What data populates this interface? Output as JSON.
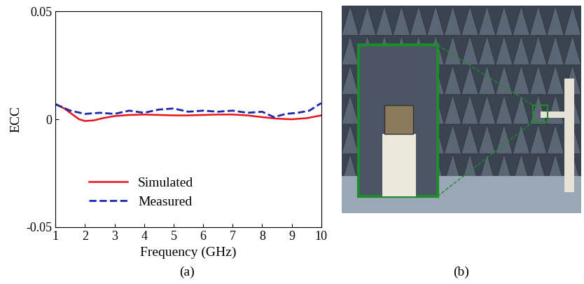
{
  "chart_data": {
    "type": "line",
    "caption": "(a)",
    "x_label": "Frequency (GHz)",
    "y_label": "ECC",
    "xlim": [
      1,
      10
    ],
    "xticks": [
      1,
      2,
      3,
      4,
      5,
      6,
      7,
      8,
      9,
      10
    ],
    "ylim": [
      -0.05,
      0.05
    ],
    "yticks": [
      -0.05,
      0,
      0.05
    ],
    "legend": "lower left",
    "series": [
      {
        "name": "Simulated",
        "color": "#e8141b",
        "line_style": "solid",
        "x": [
          1,
          1.3,
          1.6,
          1.8,
          2,
          2.3,
          2.6,
          3,
          3.5,
          4,
          4.5,
          5,
          5.5,
          6,
          6.5,
          7,
          7.5,
          8,
          8.5,
          9,
          9.5,
          10
        ],
        "values": [
          0.007,
          0.005,
          0.002,
          0.0,
          -0.0008,
          -0.0005,
          0.0005,
          0.0015,
          0.002,
          0.0022,
          0.002,
          0.0018,
          0.0018,
          0.002,
          0.0022,
          0.0022,
          0.0018,
          0.001,
          0.0003,
          0.0,
          0.0005,
          0.0018
        ]
      },
      {
        "name": "Measured",
        "color": "#1a2aa8",
        "line_style": "dashed",
        "x": [
          1,
          1.5,
          2,
          2.5,
          3,
          3.5,
          4,
          4.5,
          5,
          5.5,
          6,
          6.5,
          7,
          7.5,
          8,
          8.4,
          8.8,
          9.2,
          9.6,
          10
        ],
        "values": [
          0.007,
          0.004,
          0.0025,
          0.003,
          0.0025,
          0.004,
          0.003,
          0.0045,
          0.005,
          0.0035,
          0.004,
          0.0035,
          0.004,
          0.003,
          0.0035,
          0.001,
          0.0025,
          0.003,
          0.004,
          0.0075
        ]
      }
    ]
  },
  "photo": {
    "caption": "(b)"
  }
}
